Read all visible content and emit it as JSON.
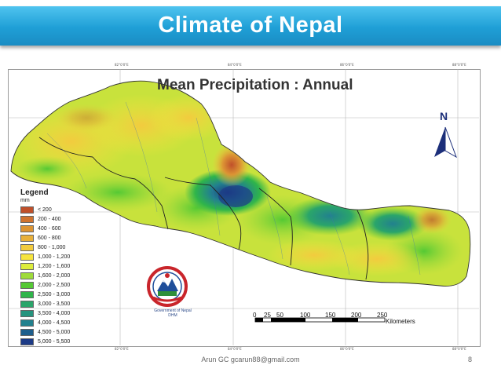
{
  "slide": {
    "title": "Climate of Nepal",
    "footer_credit": "Arun GC gcarun88@gmail.com",
    "page_number": "8",
    "banner_color": "#1f9fd6"
  },
  "map": {
    "title": "Mean Precipitation : Annual",
    "north_label": "N",
    "north_arrow_icon": "north-arrow-icon",
    "emblem_icon": "government-of-nepal-emblem-icon",
    "emblem_caption_1": "Government of Nepal",
    "emblem_caption_2": "DHM",
    "scale": {
      "ticks": [
        "0",
        "25",
        "50",
        "100",
        "150",
        "200",
        "250"
      ],
      "unit": "Kilometers"
    },
    "legend": {
      "title": "Legend",
      "unit": "mm",
      "items": [
        {
          "label": "< 200",
          "color": "#c0502a"
        },
        {
          "label": "200 - 400",
          "color": "#cf7330"
        },
        {
          "label": "400 - 600",
          "color": "#dc9434"
        },
        {
          "label": "600 - 800",
          "color": "#e8b03a"
        },
        {
          "label": "800 - 1,000",
          "color": "#f2cb3e"
        },
        {
          "label": "1,000 - 1,200",
          "color": "#f6e43e"
        },
        {
          "label": "1,200 - 1,600",
          "color": "#dded3c"
        },
        {
          "label": "1,600 - 2,000",
          "color": "#9fdc3a"
        },
        {
          "label": "2,000 - 2,500",
          "color": "#55c934"
        },
        {
          "label": "2,500 - 3,000",
          "color": "#2fb54a"
        },
        {
          "label": "3,000 - 3,500",
          "color": "#2aa56a"
        },
        {
          "label": "3,500 - 4,000",
          "color": "#26947e"
        },
        {
          "label": "4,000 - 4,500",
          "color": "#22818e"
        },
        {
          "label": "4,500 - 5,000",
          "color": "#1f5f8c"
        },
        {
          "label": "5,000 - 5,500",
          "color": "#1c3a86"
        }
      ]
    }
  }
}
